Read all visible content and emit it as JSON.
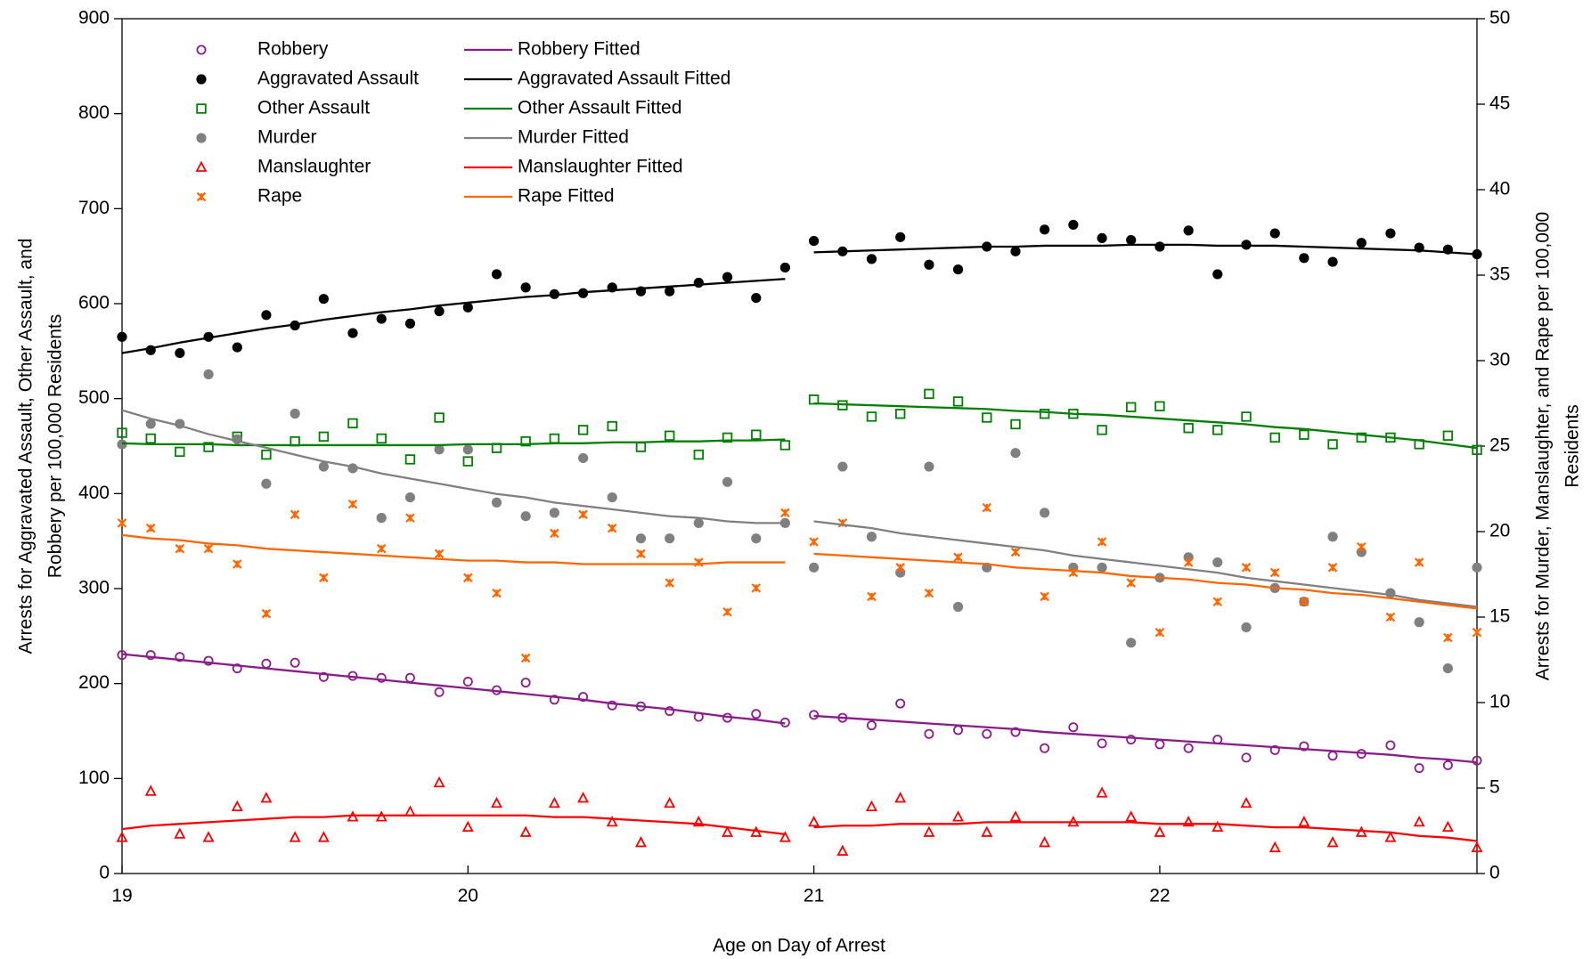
{
  "chart_data": {
    "type": "scatter",
    "xlabel": "Age on Day of Arrest",
    "ylabel": [
      "Arrests for Aggravated Assault, Other Assault, and",
      "Robbery per 100,000 Residents"
    ],
    "y2label": [
      "Arrests for Murder, Manslaughter, and Rape per 100,000",
      "Residents"
    ],
    "x": [
      19,
      19.083,
      19.167,
      19.25,
      19.333,
      19.417,
      19.5,
      19.583,
      19.667,
      19.75,
      19.833,
      19.917,
      20,
      20.083,
      20.167,
      20.25,
      20.333,
      20.417,
      20.5,
      20.583,
      20.667,
      20.75,
      20.833,
      20.917,
      21,
      21.083,
      21.167,
      21.25,
      21.333,
      21.417,
      21.5,
      21.583,
      21.667,
      21.75,
      21.833,
      21.917,
      22,
      22.083,
      22.167,
      22.25,
      22.333,
      22.417,
      22.5,
      22.583,
      22.667,
      22.75,
      22.833,
      22.917
    ],
    "break_x": 21,
    "xlim": [
      19,
      22.917
    ],
    "xticks": [
      19,
      20,
      21,
      22
    ],
    "ylim": [
      0,
      900
    ],
    "yticks": [
      0,
      100,
      200,
      300,
      400,
      500,
      600,
      700,
      800,
      900
    ],
    "y2lim": [
      0,
      50
    ],
    "y2ticks": [
      0,
      5,
      10,
      15,
      20,
      25,
      30,
      35,
      40,
      45,
      50
    ],
    "series": [
      {
        "name": "Robbery",
        "color": "#8b1a8b",
        "style": "circle-open",
        "values": [
          230,
          230,
          228,
          224,
          216,
          221,
          222,
          207,
          208,
          206,
          206,
          191,
          202,
          193,
          201,
          183,
          186,
          177,
          176,
          171,
          165,
          164,
          168,
          159,
          167,
          164,
          156,
          179,
          147,
          151,
          147,
          149,
          132,
          154,
          137,
          141,
          136,
          132,
          141,
          122,
          130,
          134,
          124,
          126,
          135,
          111,
          114,
          119
        ]
      },
      {
        "name": "Aggravated Assault",
        "color": "#000000",
        "style": "circle-filled",
        "values": [
          565,
          551,
          548,
          565,
          554,
          588,
          577,
          605,
          569,
          584,
          579,
          592,
          596,
          631,
          617,
          610,
          611,
          617,
          613,
          613,
          622,
          628,
          606,
          638,
          666,
          655,
          647,
          670,
          641,
          636,
          660,
          655,
          678,
          683,
          669,
          667,
          660,
          677,
          631,
          662,
          674,
          648,
          644,
          664,
          674,
          659,
          657,
          652
        ]
      },
      {
        "name": "Other Assault",
        "color": "#008000",
        "style": "square-open",
        "values": [
          464,
          458,
          444,
          449,
          460,
          441,
          455,
          460,
          474,
          458,
          436,
          480,
          434,
          448,
          455,
          458,
          467,
          471,
          449,
          461,
          441,
          459,
          462,
          451,
          499,
          493,
          481,
          484,
          505,
          497,
          480,
          473,
          484,
          484,
          467,
          491,
          492,
          469,
          467,
          481,
          459,
          462,
          452,
          459,
          459,
          452,
          461,
          446
        ]
      },
      {
        "name": "Murder",
        "color": "#808080",
        "style": "circle-filled",
        "axis": "y2",
        "values": [
          25.1,
          26.3,
          26.3,
          29.2,
          25.4,
          22.8,
          26.9,
          23.8,
          23.7,
          20.8,
          22.0,
          24.8,
          24.8,
          21.7,
          20.9,
          21.1,
          24.3,
          22.0,
          19.6,
          19.6,
          20.5,
          22.9,
          19.6,
          20.5,
          17.9,
          23.8,
          19.7,
          17.6,
          23.8,
          15.6,
          17.9,
          24.6,
          21.1,
          17.9,
          17.9,
          13.5,
          17.3,
          18.5,
          18.2,
          14.4,
          16.7,
          15.9,
          19.7,
          18.8,
          16.4,
          14.7,
          12.0,
          17.9
        ]
      },
      {
        "name": "Manslaughter",
        "color": "#ff0000",
        "style": "triangle-open",
        "axis": "y2",
        "values": [
          2.1,
          4.8,
          2.3,
          2.1,
          3.9,
          4.4,
          2.1,
          2.1,
          3.3,
          3.3,
          3.6,
          5.3,
          2.7,
          4.1,
          2.4,
          4.1,
          4.4,
          3.0,
          1.8,
          4.1,
          3.0,
          2.4,
          2.4,
          2.1,
          3.0,
          1.3,
          3.9,
          4.4,
          2.4,
          3.3,
          2.4,
          3.3,
          1.8,
          3.0,
          4.7,
          3.3,
          2.4,
          3.0,
          2.7,
          4.1,
          1.5,
          3.0,
          1.8,
          2.4,
          2.1,
          3.0,
          2.7,
          1.5
        ]
      },
      {
        "name": "Rape",
        "color": "#ff6600",
        "style": "asterisk",
        "axis": "y2",
        "values": [
          20.5,
          20.2,
          19.0,
          19.0,
          18.1,
          15.2,
          21.0,
          17.3,
          21.6,
          19.0,
          20.8,
          18.7,
          17.3,
          16.4,
          12.6,
          19.9,
          21.0,
          20.2,
          18.7,
          17.0,
          18.2,
          15.3,
          16.7,
          21.1,
          19.4,
          20.5,
          16.2,
          17.9,
          16.4,
          18.5,
          21.4,
          18.8,
          16.2,
          17.6,
          19.4,
          17.0,
          14.1,
          18.2,
          15.9,
          17.9,
          17.6,
          15.9,
          17.9,
          19.1,
          15.0,
          18.2,
          13.8,
          14.1
        ]
      },
      {
        "name": "Robbery Fitted",
        "color": "#8b1a8b",
        "style": "line",
        "values": [
          231,
          228,
          225,
          222,
          219,
          216,
          213,
          210,
          207,
          204,
          201,
          198,
          195,
          192,
          189,
          186,
          183,
          179,
          176,
          173,
          169,
          165,
          162,
          158,
          166,
          164,
          162,
          160,
          158,
          156,
          154,
          152,
          149,
          147,
          145,
          143,
          141,
          139,
          137,
          135,
          133,
          131,
          129,
          127,
          125,
          122,
          120,
          117
        ]
      },
      {
        "name": "Aggravated Assault Fitted",
        "color": "#000000",
        "style": "line",
        "values": [
          548,
          553,
          559,
          564,
          569,
          574,
          578,
          583,
          587,
          591,
          594,
          598,
          601,
          604,
          607,
          609,
          612,
          614,
          616,
          618,
          620,
          622,
          624,
          626,
          654,
          655,
          656,
          657,
          658,
          659,
          660,
          660,
          661,
          661,
          661,
          662,
          662,
          662,
          661,
          661,
          661,
          660,
          659,
          658,
          657,
          656,
          654,
          652
        ]
      },
      {
        "name": "Other Assault Fitted",
        "color": "#008000",
        "style": "line",
        "values": [
          453,
          452,
          452,
          452,
          451,
          451,
          451,
          451,
          451,
          451,
          451,
          451,
          452,
          452,
          452,
          453,
          453,
          454,
          454,
          455,
          455,
          456,
          456,
          457,
          495,
          494,
          493,
          492,
          491,
          490,
          489,
          487,
          486,
          484,
          483,
          481,
          479,
          477,
          475,
          473,
          470,
          468,
          465,
          462,
          459,
          456,
          452,
          448
        ]
      },
      {
        "name": "Murder Fitted",
        "color": "#808080",
        "style": "line",
        "axis": "y2",
        "values": [
          27.1,
          26.6,
          26.2,
          25.7,
          25.3,
          24.9,
          24.5,
          24.1,
          23.8,
          23.4,
          23.1,
          22.8,
          22.5,
          22.2,
          22.0,
          21.7,
          21.5,
          21.3,
          21.1,
          20.9,
          20.8,
          20.6,
          20.5,
          20.5,
          20.6,
          20.4,
          20.2,
          19.9,
          19.7,
          19.5,
          19.3,
          19.1,
          18.9,
          18.6,
          18.4,
          18.2,
          18.0,
          17.8,
          17.6,
          17.3,
          17.1,
          16.9,
          16.7,
          16.5,
          16.3,
          16.0,
          15.8,
          15.6
        ]
      },
      {
        "name": "Manslaughter Fitted",
        "color": "#ff0000",
        "style": "line",
        "axis": "y2",
        "values": [
          2.6,
          2.8,
          2.9,
          3.0,
          3.1,
          3.2,
          3.3,
          3.3,
          3.4,
          3.4,
          3.4,
          3.4,
          3.4,
          3.4,
          3.4,
          3.3,
          3.3,
          3.2,
          3.1,
          3.0,
          2.9,
          2.7,
          2.5,
          2.3,
          2.7,
          2.8,
          2.8,
          2.9,
          2.9,
          2.9,
          3.0,
          3.0,
          3.0,
          3.0,
          3.0,
          3.0,
          2.9,
          2.9,
          2.9,
          2.8,
          2.7,
          2.7,
          2.6,
          2.5,
          2.4,
          2.2,
          2.1,
          1.9
        ]
      },
      {
        "name": "Rape Fitted",
        "color": "#ff6600",
        "style": "line",
        "axis": "y2",
        "values": [
          19.8,
          19.6,
          19.5,
          19.3,
          19.2,
          19.0,
          18.9,
          18.8,
          18.7,
          18.6,
          18.5,
          18.4,
          18.3,
          18.3,
          18.2,
          18.2,
          18.1,
          18.1,
          18.1,
          18.1,
          18.1,
          18.2,
          18.2,
          18.2,
          18.7,
          18.6,
          18.5,
          18.4,
          18.3,
          18.2,
          18.1,
          17.9,
          17.8,
          17.7,
          17.6,
          17.4,
          17.3,
          17.2,
          17.0,
          16.9,
          16.7,
          16.6,
          16.4,
          16.3,
          16.1,
          15.9,
          15.7,
          15.5
        ]
      }
    ]
  }
}
